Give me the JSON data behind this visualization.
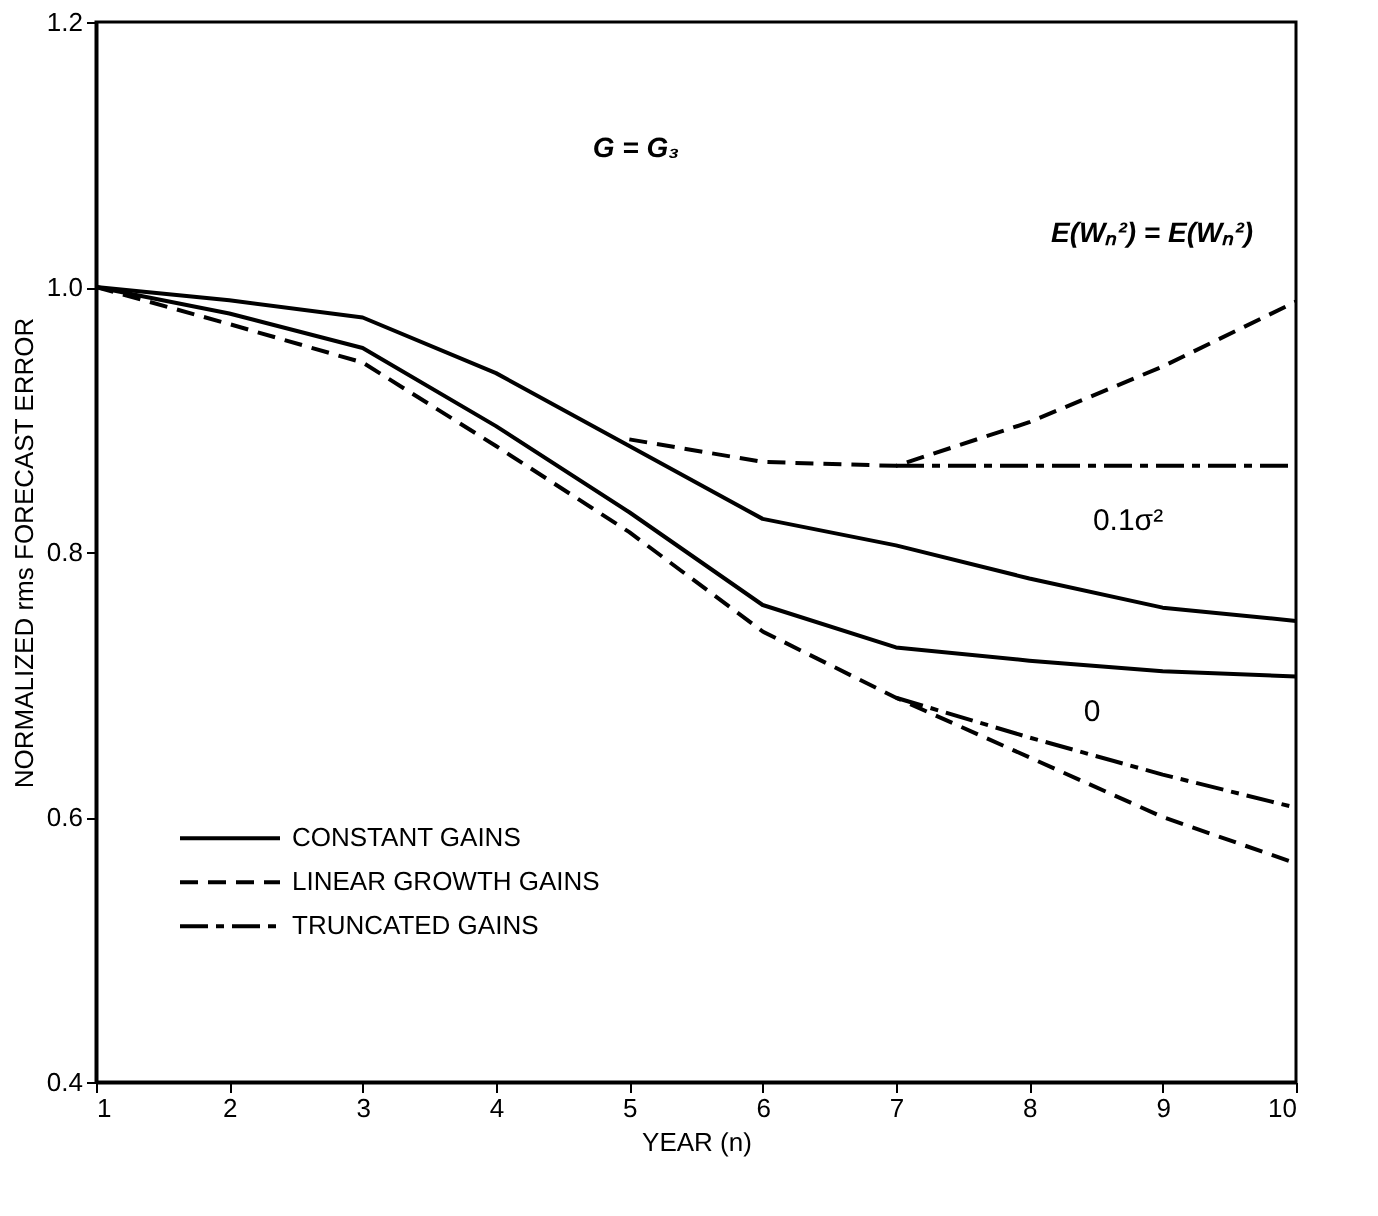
{
  "chart_data": {
    "type": "line",
    "xlabel": "YEAR (n)",
    "ylabel": "NORMALIZED rms FORECAST ERROR",
    "xlim": [
      1,
      10
    ],
    "xticks": [
      1,
      2,
      3,
      4,
      5,
      6,
      7,
      8,
      9,
      10
    ],
    "ylim": [
      0.4,
      1.2
    ],
    "yticks": [
      0.4,
      0.6,
      0.8,
      {
        "value": 1,
        "label": "1.0"
      },
      1.2
    ],
    "grid": false,
    "legend": "bottom left",
    "series": [
      {
        "name": "CONSTANT GAINS",
        "color": "#000000",
        "line_style": "solid",
        "x": [
          1,
          2,
          3,
          4,
          5,
          6,
          7,
          8,
          9,
          10
        ],
        "values": [
          1.0,
          0.99,
          0.977,
          0.935,
          0.88,
          0.825,
          0.805,
          0.78,
          0.758,
          0.748
        ]
      },
      {
        "color": "#000000",
        "line_style": "solid",
        "x": [
          1,
          2,
          3,
          4,
          5,
          6,
          7,
          8,
          9,
          10
        ],
        "values": [
          1.0,
          0.98,
          0.954,
          0.895,
          0.83,
          0.76,
          0.728,
          0.718,
          0.71,
          0.706
        ]
      },
      {
        "name": "LINEAR GROWTH GAINS",
        "color": "#000000",
        "line_style": "dashed",
        "x": [
          1,
          2,
          3,
          4,
          5,
          6,
          7,
          8,
          9,
          10
        ],
        "values": [
          1.0,
          0.972,
          0.943,
          0.88,
          0.815,
          0.74,
          0.69,
          0.645,
          0.6,
          0.565
        ]
      },
      {
        "color": "#000000",
        "line_style": "dashed",
        "x": [
          5,
          6,
          7,
          8,
          9,
          10
        ],
        "values": [
          0.885,
          0.868,
          0.865,
          0.898,
          0.94,
          0.989
        ]
      },
      {
        "name": "TRUNCATED GAINS",
        "color": "#000000",
        "line_style": "dashdot",
        "x": [
          7,
          8,
          9,
          10
        ],
        "values": [
          0.865,
          0.865,
          0.865,
          0.865
        ]
      },
      {
        "color": "#000000",
        "line_style": "dashdot",
        "x": [
          7,
          8,
          9,
          10
        ],
        "values": [
          0.69,
          0.66,
          0.632,
          0.607
        ]
      }
    ],
    "annotations": [
      "G = G₃",
      "E(Wₙ²) = E(Wₙ²)",
      "0.1σ²",
      "0"
    ]
  }
}
